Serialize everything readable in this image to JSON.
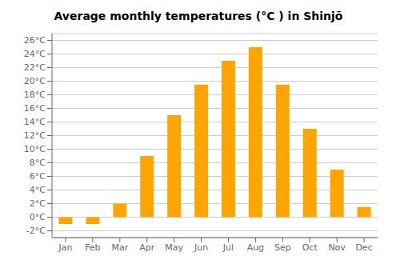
{
  "chart_data": {
    "type": "bar",
    "title": "Average monthly temperatures (°C ) in Shinjō",
    "categories": [
      "Jan",
      "Feb",
      "Mar",
      "Apr",
      "May",
      "Jun",
      "Jul",
      "Aug",
      "Sep",
      "Oct",
      "Nov",
      "Dec"
    ],
    "values": [
      -1.0,
      -1.0,
      2.0,
      9.0,
      15.0,
      19.5,
      23.0,
      25.0,
      19.5,
      13.0,
      7.0,
      1.5
    ],
    "color": "#FFA500",
    "ylim": [
      -3,
      27
    ],
    "yticks": [
      {
        "value": -2,
        "label": "-2°C"
      },
      {
        "value": 0,
        "label": "0°C"
      },
      {
        "value": 2,
        "label": "2°C"
      },
      {
        "value": 4,
        "label": "4°C"
      },
      {
        "value": 6,
        "label": "6°C"
      },
      {
        "value": 8,
        "label": "8°C"
      },
      {
        "value": 10,
        "label": "10°C"
      },
      {
        "value": 12,
        "label": "12°C"
      },
      {
        "value": 14,
        "label": "14°C"
      },
      {
        "value": 16,
        "label": "16°C"
      },
      {
        "value": 18,
        "label": "18°C"
      },
      {
        "value": 20,
        "label": "20°C"
      },
      {
        "value": 22,
        "label": "22°C"
      },
      {
        "value": 24,
        "label": "24°C"
      },
      {
        "value": 26,
        "label": "26°C"
      }
    ],
    "grid": true
  }
}
